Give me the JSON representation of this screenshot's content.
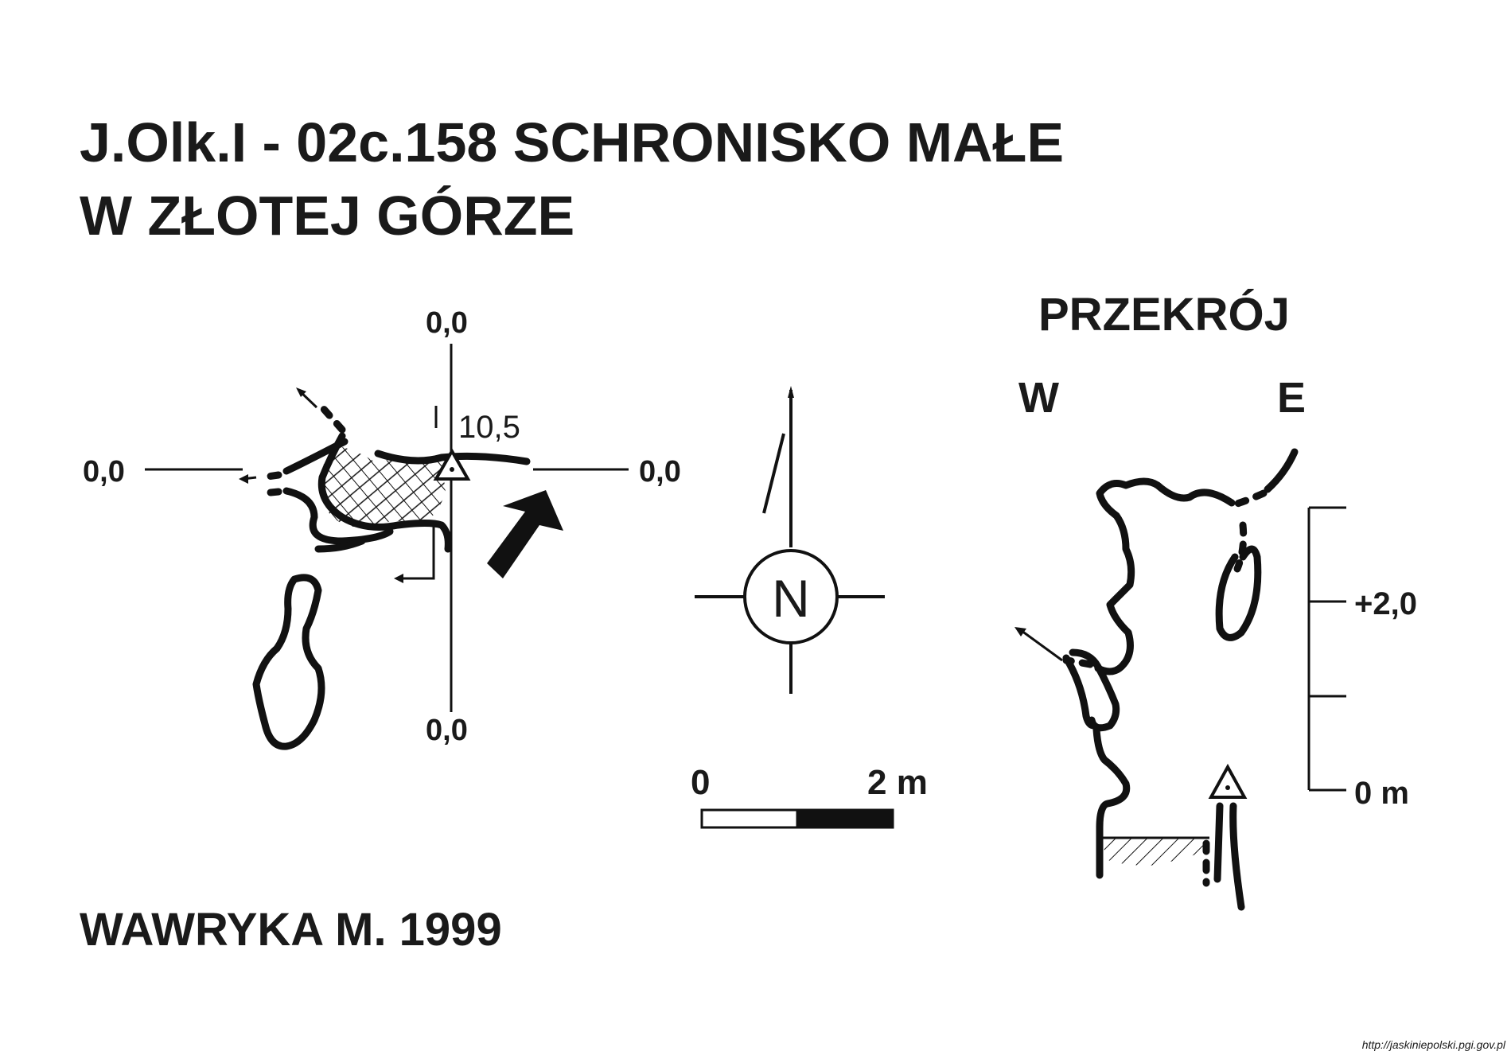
{
  "title": {
    "line1": "J.Olk.I - 02c.158  SCHRONISKO MAŁE",
    "line2": "W ZŁOTEJ GÓRZE"
  },
  "plan": {
    "label_top": "0,0",
    "label_left": "0,0",
    "label_right": "0,0",
    "label_bottom": "0,0",
    "station_depth": "10,5"
  },
  "compass": {
    "north_letter": "N"
  },
  "scale_bar": {
    "start_label": "0",
    "end_label": "2 m"
  },
  "section": {
    "title": "PRZEKRÓJ",
    "west_label": "W",
    "east_label": "E",
    "height_label": "+2,0",
    "zero_label": "0 m"
  },
  "author": "WAWRYKA M. 1999",
  "credit": "http://jaskiniepolski.pgi.gov.pl",
  "colors": {
    "ink": "#111111",
    "paper": "#ffffff"
  }
}
